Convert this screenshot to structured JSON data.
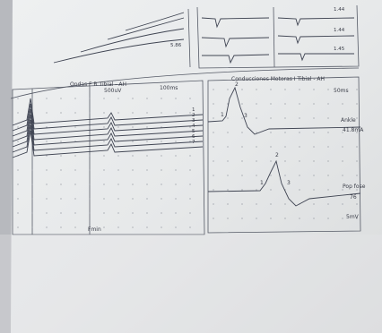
{
  "top_labels": [
    "1.44",
    "1.44",
    "1.45",
    "5.86"
  ],
  "left_panel": {
    "title": "Ondas F R Tibial - AH",
    "gain": "500uV",
    "sweep": "100ms",
    "trace_labels": [
      "1",
      "2",
      "3",
      "4",
      "5",
      "6",
      "7"
    ],
    "footer": "Fmin"
  },
  "right_panel": {
    "title": "Conducciones Motoras I Tibial - AH",
    "sweep": "50ms",
    "upper_trace": {
      "markers": [
        "1",
        "2",
        "3"
      ],
      "site": "Ankle",
      "current": "41.8mA"
    },
    "lower_trace": {
      "markers": [
        "1",
        "2",
        "3"
      ],
      "site": "Pop fose",
      "value": "76"
    },
    "gain": "5mV"
  }
}
